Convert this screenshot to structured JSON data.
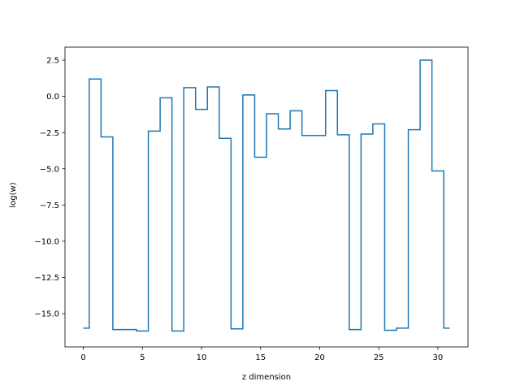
{
  "chart_data": {
    "type": "line",
    "drawstyle": "steps-mid",
    "title": "",
    "xlabel": "z dimension",
    "ylabel": "log(w)",
    "xlim": [
      -1.55,
      32.55
    ],
    "ylim": [
      -17.3,
      3.4
    ],
    "xticks": [
      0,
      5,
      10,
      15,
      20,
      25,
      30
    ],
    "xtick_labels": [
      "0",
      "5",
      "10",
      "15",
      "20",
      "25",
      "30"
    ],
    "yticks": [
      2.5,
      0.0,
      -2.5,
      -5.0,
      -7.5,
      -10.0,
      -12.5,
      -15.0
    ],
    "ytick_labels": [
      "2.5",
      "0.0",
      "−2.5",
      "−5.0",
      "−7.5",
      "−10.0",
      "−12.5",
      "−15.0"
    ],
    "grid": false,
    "legend": false,
    "series": [
      {
        "color": "#1f77b4",
        "x": [
          0,
          1,
          2,
          3,
          4,
          5,
          6,
          7,
          8,
          9,
          10,
          11,
          12,
          13,
          14,
          15,
          16,
          17,
          18,
          19,
          20,
          21,
          22,
          23,
          24,
          25,
          26,
          27,
          28,
          29,
          30,
          31
        ],
        "y": [
          -16.0,
          1.2,
          -2.8,
          -16.1,
          -16.1,
          -16.2,
          -2.4,
          -0.1,
          -16.2,
          0.6,
          -0.9,
          0.65,
          -2.9,
          -16.05,
          0.1,
          -4.2,
          -1.2,
          -2.25,
          -1.0,
          -2.7,
          -2.7,
          0.4,
          -2.65,
          -16.1,
          -2.6,
          -1.9,
          -16.15,
          -16.0,
          -2.3,
          2.5,
          -5.15,
          -16.0
        ]
      }
    ]
  }
}
